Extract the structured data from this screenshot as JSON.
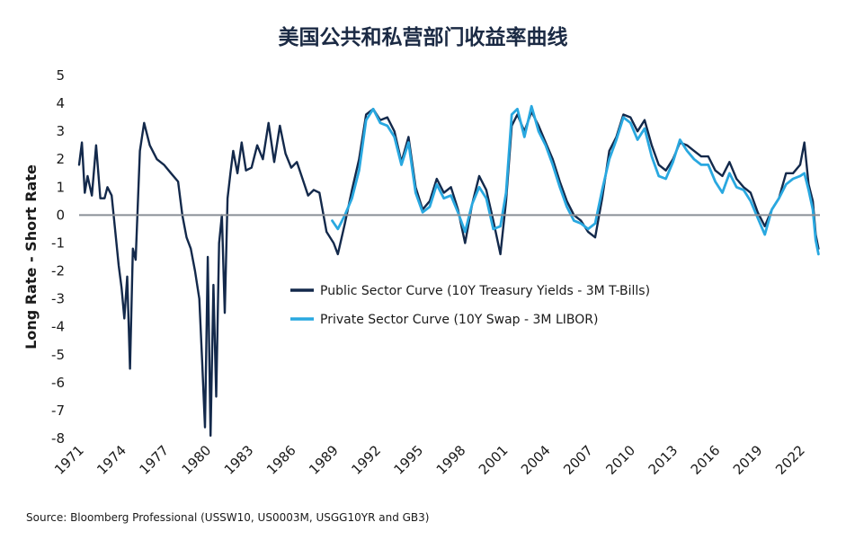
{
  "chart_data": {
    "type": "line",
    "title": "美国公共和私营部门收益率曲线",
    "xlabel": "",
    "ylabel": "Long Rate - Short Rate",
    "ylim": [
      -8,
      5
    ],
    "xlim": [
      1971,
      2023.4
    ],
    "y_ticks": [
      "5",
      "4",
      "3",
      "2",
      "1",
      "0",
      "-1",
      "-2",
      "-3",
      "-4",
      "-5",
      "-6",
      "-7",
      "-8"
    ],
    "x_ticks": [
      "1971",
      "1974",
      "1977",
      "1980",
      "1983",
      "1986",
      "1989",
      "1992",
      "1995",
      "1998",
      "2001",
      "2004",
      "2007",
      "2010",
      "2013",
      "2016",
      "2019",
      "2022"
    ],
    "zero_line": true,
    "legend_position": "center",
    "series": [
      {
        "name": "Public Sector Curve (10Y Treasury Yields - 3M T-Bills)",
        "color": "#13294b",
        "x": [
          1971.0,
          1971.2,
          1971.4,
          1971.6,
          1971.9,
          1972.2,
          1972.5,
          1972.8,
          1973.0,
          1973.3,
          1973.6,
          1973.8,
          1974.0,
          1974.2,
          1974.4,
          1974.6,
          1974.8,
          1975.0,
          1975.3,
          1975.6,
          1976.0,
          1976.5,
          1977.0,
          1977.5,
          1978.0,
          1978.3,
          1978.6,
          1978.9,
          1979.2,
          1979.5,
          1979.7,
          1979.9,
          1980.1,
          1980.3,
          1980.5,
          1980.7,
          1980.9,
          1981.1,
          1981.3,
          1981.5,
          1981.7,
          1981.9,
          1982.2,
          1982.5,
          1982.8,
          1983.2,
          1983.6,
          1984.0,
          1984.4,
          1984.8,
          1985.2,
          1985.6,
          1986.0,
          1986.4,
          1986.8,
          1987.2,
          1987.6,
          1988.0,
          1988.5,
          1989.0,
          1989.3,
          1989.8,
          1990.3,
          1990.8,
          1991.3,
          1991.8,
          1992.3,
          1992.8,
          1993.3,
          1993.8,
          1994.3,
          1994.8,
          1995.3,
          1995.8,
          1996.3,
          1996.8,
          1997.3,
          1997.8,
          1998.3,
          1998.8,
          1999.3,
          1999.8,
          2000.3,
          2000.8,
          2001.2,
          2001.6,
          2002.0,
          2002.5,
          2003.0,
          2003.5,
          2004.0,
          2004.5,
          2005.0,
          2005.5,
          2006.0,
          2006.5,
          2007.0,
          2007.5,
          2008.0,
          2008.5,
          2009.0,
          2009.5,
          2010.0,
          2010.5,
          2011.0,
          2011.5,
          2012.0,
          2012.5,
          2013.0,
          2013.5,
          2014.0,
          2014.5,
          2015.0,
          2015.5,
          2016.0,
          2016.5,
          2017.0,
          2017.5,
          2018.0,
          2018.5,
          2019.0,
          2019.5,
          2020.0,
          2020.5,
          2021.0,
          2021.5,
          2022.0,
          2022.3,
          2022.6,
          2022.9,
          2023.1,
          2023.3
        ],
        "y": [
          1.8,
          2.6,
          0.8,
          1.4,
          0.7,
          2.5,
          0.6,
          0.6,
          1.0,
          0.7,
          -0.8,
          -1.8,
          -2.6,
          -3.7,
          -2.2,
          -5.5,
          -1.2,
          -1.6,
          2.3,
          3.3,
          2.5,
          2.0,
          1.8,
          1.5,
          1.2,
          0.0,
          -0.8,
          -1.2,
          -2.0,
          -3.0,
          -5.2,
          -7.6,
          -1.5,
          -7.9,
          -2.5,
          -6.5,
          -1.0,
          0.0,
          -3.5,
          0.6,
          1.5,
          2.3,
          1.5,
          2.6,
          1.6,
          1.7,
          2.5,
          2.0,
          3.3,
          1.9,
          3.2,
          2.2,
          1.7,
          1.9,
          1.3,
          0.7,
          0.9,
          0.8,
          -0.6,
          -1.0,
          -1.4,
          -0.3,
          0.9,
          2.0,
          3.6,
          3.8,
          3.4,
          3.5,
          3.0,
          1.9,
          2.8,
          1.0,
          0.2,
          0.5,
          1.3,
          0.8,
          1.0,
          0.2,
          -1.0,
          0.4,
          1.4,
          0.9,
          -0.2,
          -1.4,
          0.5,
          3.2,
          3.6,
          3.0,
          3.7,
          3.2,
          2.6,
          2.0,
          1.2,
          0.5,
          0.0,
          -0.2,
          -0.6,
          -0.8,
          0.6,
          2.3,
          2.8,
          3.6,
          3.5,
          3.0,
          3.4,
          2.5,
          1.8,
          1.6,
          2.0,
          2.6,
          2.5,
          2.3,
          2.1,
          2.1,
          1.6,
          1.4,
          1.9,
          1.3,
          1.0,
          0.8,
          0.1,
          -0.4,
          0.2,
          0.6,
          1.5,
          1.5,
          1.8,
          2.6,
          1.1,
          0.5,
          -0.7,
          -1.2
        ]
      },
      {
        "name": "Private Sector Curve (10Y Swap - 3M LIBOR)",
        "color": "#29a8e0",
        "x": [
          1988.9,
          1989.3,
          1989.8,
          1990.3,
          1990.8,
          1991.3,
          1991.8,
          1992.3,
          1992.8,
          1993.3,
          1993.8,
          1994.3,
          1994.8,
          1995.3,
          1995.8,
          1996.3,
          1996.8,
          1997.3,
          1997.8,
          1998.3,
          1998.8,
          1999.3,
          1999.8,
          2000.3,
          2000.8,
          2001.2,
          2001.6,
          2002.0,
          2002.5,
          2003.0,
          2003.5,
          2004.0,
          2004.5,
          2005.0,
          2005.5,
          2006.0,
          2006.5,
          2007.0,
          2007.5,
          2008.0,
          2008.5,
          2009.0,
          2009.5,
          2010.0,
          2010.5,
          2011.0,
          2011.5,
          2012.0,
          2012.5,
          2013.0,
          2013.5,
          2014.0,
          2014.5,
          2015.0,
          2015.5,
          2016.0,
          2016.5,
          2017.0,
          2017.5,
          2018.0,
          2018.5,
          2019.0,
          2019.5,
          2020.0,
          2020.5,
          2021.0,
          2021.5,
          2022.0,
          2022.3,
          2022.6,
          2022.9,
          2023.1,
          2023.3
        ],
        "y": [
          -0.2,
          -0.5,
          0.0,
          0.6,
          1.6,
          3.4,
          3.8,
          3.3,
          3.2,
          2.8,
          1.8,
          2.6,
          0.8,
          0.1,
          0.3,
          1.1,
          0.6,
          0.7,
          0.1,
          -0.6,
          0.4,
          1.0,
          0.6,
          -0.5,
          -0.4,
          0.8,
          3.6,
          3.8,
          2.8,
          3.9,
          3.0,
          2.5,
          1.8,
          1.0,
          0.3,
          -0.2,
          -0.3,
          -0.5,
          -0.3,
          0.9,
          2.0,
          2.7,
          3.5,
          3.3,
          2.7,
          3.1,
          2.1,
          1.4,
          1.3,
          1.9,
          2.7,
          2.3,
          2.0,
          1.8,
          1.8,
          1.2,
          0.8,
          1.5,
          1.0,
          0.9,
          0.5,
          -0.1,
          -0.7,
          0.2,
          0.6,
          1.1,
          1.3,
          1.4,
          1.5,
          0.9,
          0.2,
          -0.9,
          -1.4
        ]
      }
    ]
  },
  "source_note": "Source: Bloomberg Professional (USSW10, US0003M, USGG10YR and GB3)"
}
